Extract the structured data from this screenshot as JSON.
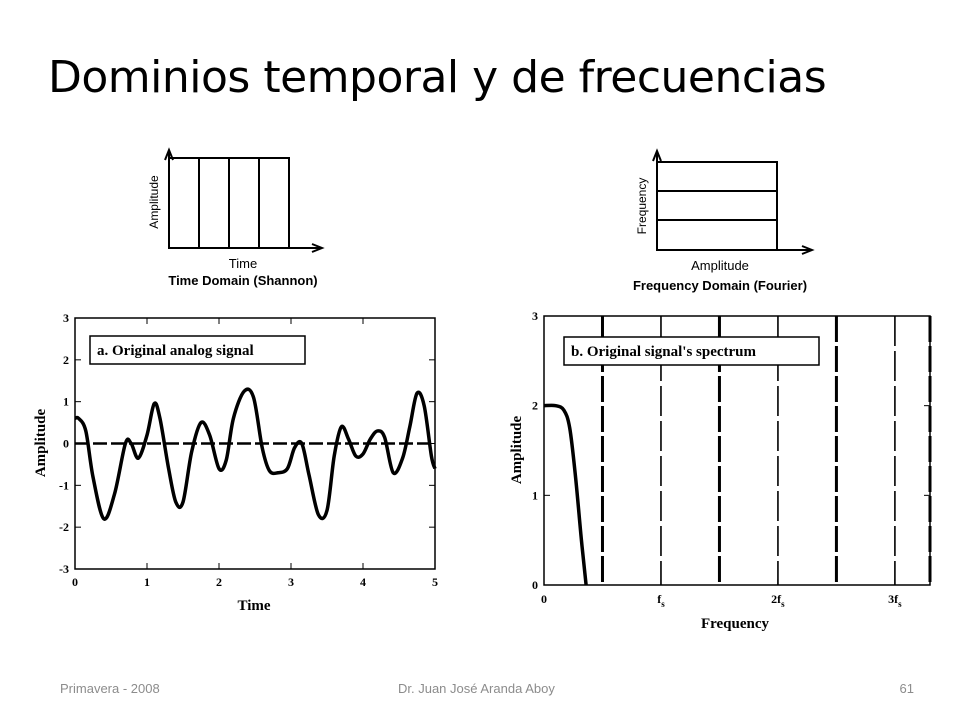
{
  "slide": {
    "title": "Dominios temporal y de frecuencias",
    "footer_left": "Primavera - 2008",
    "footer_center": "Dr. Juan José Aranda Aboy",
    "footer_right": "61"
  },
  "chart_data": [
    {
      "type": "diagram",
      "title": "Time Domain (Shannon)",
      "xlabel": "Time",
      "ylabel": "Amplitude",
      "columns": 4
    },
    {
      "type": "diagram",
      "title": "Frequency Domain (Fourier)",
      "xlabel": "Amplitude",
      "ylabel": "Frequency",
      "rows": 3
    },
    {
      "type": "line",
      "title": "a.  Original analog signal",
      "xlabel": "Time",
      "ylabel": "Amplitude",
      "xlim": [
        0,
        5
      ],
      "ylim": [
        -3,
        3
      ],
      "xticks": [
        "0",
        "1",
        "2",
        "3",
        "4",
        "5"
      ],
      "yticks": [
        "-3",
        "-2",
        "-1",
        "0",
        "1",
        "2",
        "3"
      ],
      "series": [
        {
          "x": [
            0,
            0.05,
            0.15,
            0.25,
            0.4,
            0.55,
            0.7,
            0.78,
            0.88,
            1.0,
            1.1,
            1.18,
            1.3,
            1.4,
            1.5,
            1.62,
            1.75,
            1.87,
            2.0,
            2.1,
            2.2,
            2.35,
            2.48,
            2.6,
            2.7,
            2.82,
            2.95,
            3.05,
            3.15,
            3.25,
            3.38,
            3.5,
            3.6,
            3.7,
            3.8,
            3.9,
            4.0,
            4.1,
            4.2,
            4.3,
            4.42,
            4.55,
            4.65,
            4.75,
            4.85,
            4.95,
            5.0
          ],
          "values": [
            0.6,
            0.6,
            0.3,
            -0.8,
            -1.8,
            -1.2,
            0.0,
            0.0,
            -0.35,
            0.2,
            0.95,
            0.6,
            -0.6,
            -1.4,
            -1.4,
            -0.2,
            0.5,
            0.2,
            -0.6,
            -0.4,
            0.6,
            1.25,
            1.1,
            -0.1,
            -0.65,
            -0.7,
            -0.6,
            -0.1,
            0.0,
            -0.75,
            -1.7,
            -1.6,
            -0.3,
            0.4,
            0.1,
            -0.3,
            -0.25,
            0.1,
            0.3,
            0.15,
            -0.7,
            -0.35,
            0.4,
            1.2,
            0.9,
            -0.3,
            -0.6
          ]
        },
        {
          "x": [
            0,
            5
          ],
          "values": [
            0,
            0
          ]
        }
      ]
    },
    {
      "type": "line",
      "title": "b.  Original signal's spectrum",
      "xlabel": "Frequency",
      "ylabel": "Amplitude",
      "xlim": [
        0,
        3.3
      ],
      "ylim": [
        0,
        3
      ],
      "xticks": [
        "0",
        "f",
        "2f",
        "3f"
      ],
      "xtick_subscript": "s",
      "yticks": [
        "0",
        "1",
        "2",
        "3"
      ],
      "series": [
        {
          "x": [
            0,
            0.1,
            0.17,
            0.22,
            0.27,
            0.32,
            0.36
          ],
          "values": [
            2.0,
            2.0,
            1.95,
            1.75,
            1.2,
            0.5,
            0.0
          ]
        }
      ],
      "vertical_lines": [
        0.5,
        1.0,
        1.5,
        2.0,
        2.5,
        3.0,
        3.3
      ]
    }
  ]
}
